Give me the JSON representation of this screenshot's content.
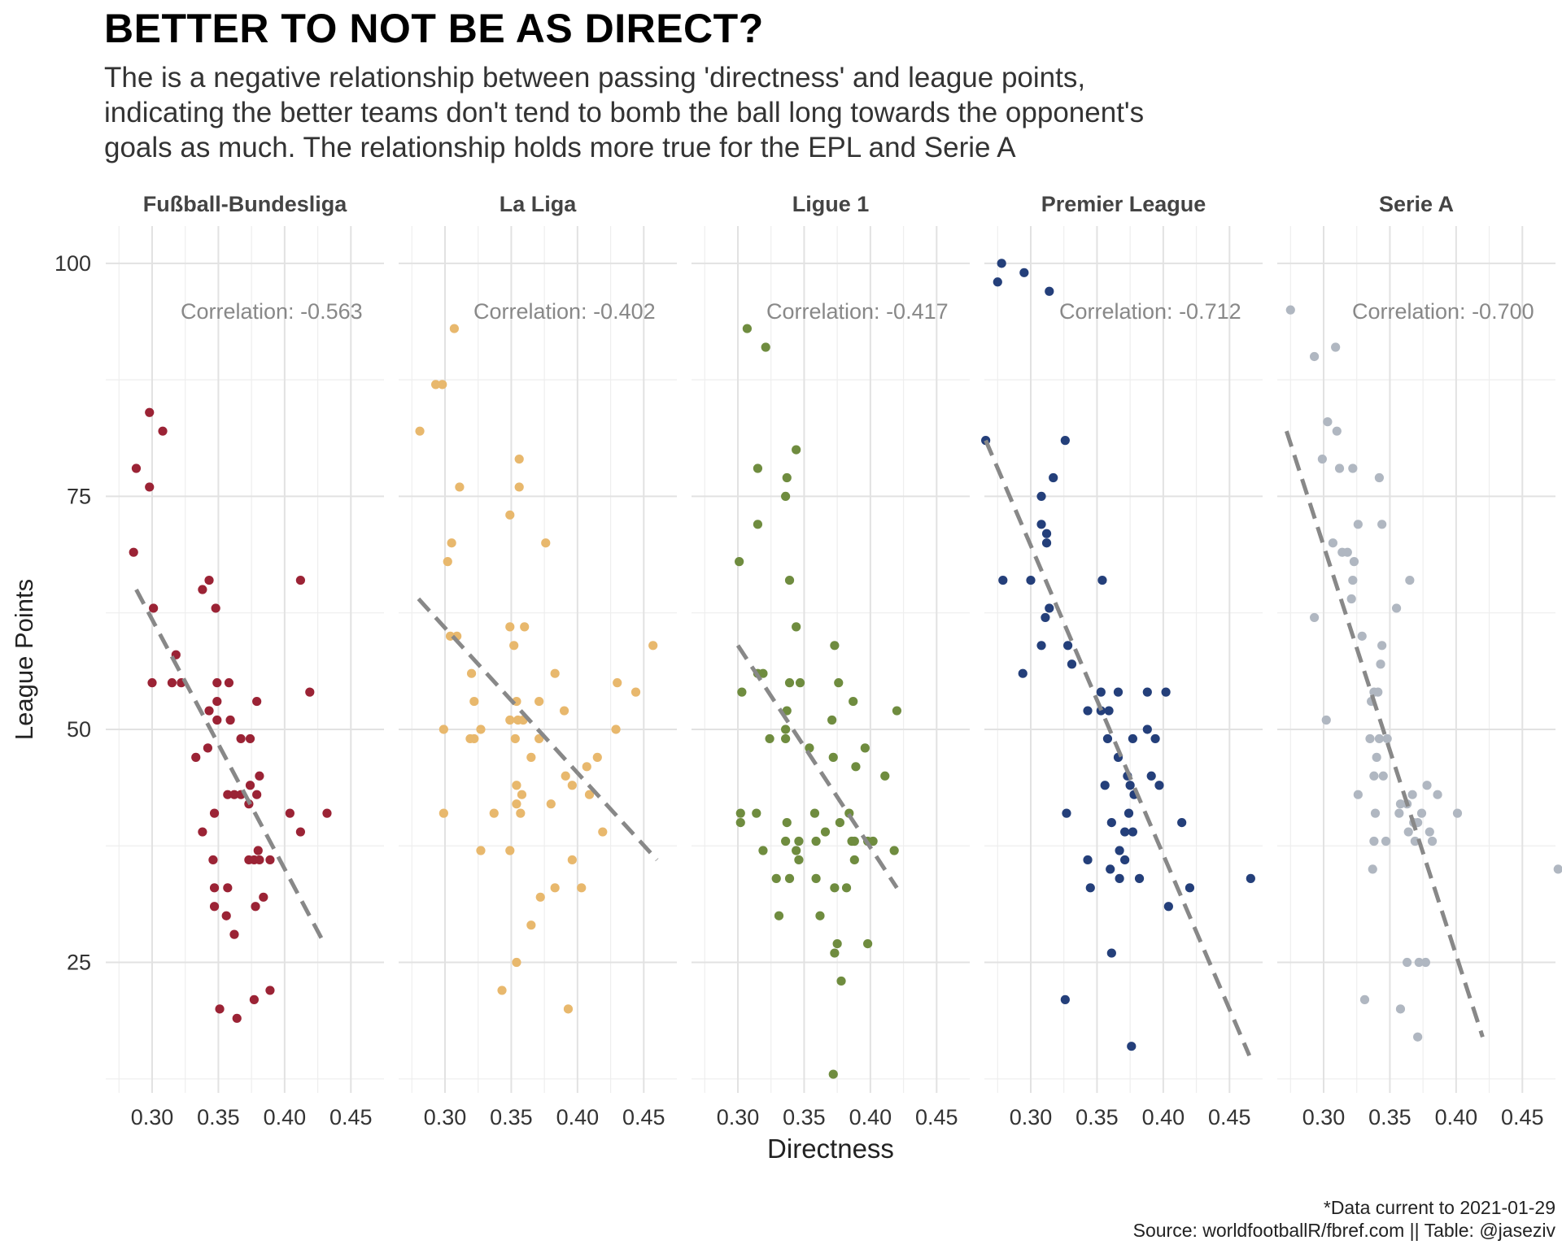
{
  "title": "BETTER TO NOT BE AS DIRECT?",
  "subtitle_lines": [
    "The is a negative relationship between passing 'directness' and league points,",
    "indicating the better teams don't tend to bomb the ball long towards the opponent's",
    "goals as much. The relationship holds more true for the EPL and Serie A"
  ],
  "caption_lines": [
    "*Data current to 2021-01-29",
    "Source: worldfootballR/fbref.com  ||  Table: @jaseziv"
  ],
  "chart_data": {
    "type": "scatter",
    "xlabel": "Directness",
    "ylabel": "League Points",
    "xlim": [
      0.265,
      0.475
    ],
    "ylim": [
      11,
      104
    ],
    "x_ticks": [
      0.3,
      0.35,
      0.4,
      0.45
    ],
    "x_tick_labels": [
      "0.30",
      "0.35",
      "0.40",
      "0.45"
    ],
    "y_ticks": [
      25,
      50,
      75,
      100
    ],
    "y_tick_labels": [
      "25",
      "50",
      "75",
      "100"
    ],
    "grid": true,
    "legend": "none",
    "trend_line_color": "#888888",
    "annotation_color": "#888888",
    "facets": [
      {
        "name": "Fußball-Bundesliga",
        "color": "#9B2335",
        "correlation_label": "Correlation: -0.563",
        "trend": {
          "x": [
            0.288,
            0.43
          ],
          "y": [
            65,
            27
          ]
        },
        "points": [
          [
            0.298,
            84
          ],
          [
            0.308,
            82
          ],
          [
            0.288,
            78
          ],
          [
            0.298,
            76
          ],
          [
            0.286,
            69
          ],
          [
            0.301,
            63
          ],
          [
            0.3,
            55
          ],
          [
            0.315,
            55
          ],
          [
            0.322,
            55
          ],
          [
            0.318,
            58
          ],
          [
            0.338,
            65
          ],
          [
            0.343,
            66
          ],
          [
            0.348,
            63
          ],
          [
            0.349,
            55
          ],
          [
            0.358,
            55
          ],
          [
            0.349,
            53
          ],
          [
            0.343,
            52
          ],
          [
            0.349,
            51
          ],
          [
            0.359,
            51
          ],
          [
            0.333,
            47
          ],
          [
            0.342,
            48
          ],
          [
            0.379,
            53
          ],
          [
            0.367,
            49
          ],
          [
            0.374,
            49
          ],
          [
            0.338,
            39
          ],
          [
            0.357,
            43
          ],
          [
            0.362,
            43
          ],
          [
            0.367,
            43
          ],
          [
            0.373,
            42
          ],
          [
            0.374,
            44
          ],
          [
            0.381,
            45
          ],
          [
            0.379,
            43
          ],
          [
            0.347,
            41
          ],
          [
            0.346,
            36
          ],
          [
            0.377,
            36
          ],
          [
            0.38,
            37
          ],
          [
            0.381,
            36
          ],
          [
            0.389,
            36
          ],
          [
            0.404,
            41
          ],
          [
            0.412,
            39
          ],
          [
            0.412,
            66
          ],
          [
            0.419,
            54
          ],
          [
            0.432,
            41
          ],
          [
            0.347,
            33
          ],
          [
            0.357,
            33
          ],
          [
            0.347,
            31
          ],
          [
            0.356,
            30
          ],
          [
            0.384,
            32
          ],
          [
            0.378,
            31
          ],
          [
            0.362,
            28
          ],
          [
            0.351,
            20
          ],
          [
            0.364,
            19
          ],
          [
            0.377,
            21
          ],
          [
            0.389,
            22
          ],
          [
            0.373,
            36
          ]
        ]
      },
      {
        "name": "La Liga",
        "color": "#E8B86D",
        "correlation_label": "Correlation: -0.402",
        "trend": {
          "x": [
            0.28,
            0.46
          ],
          "y": [
            64,
            36
          ]
        },
        "points": [
          [
            0.307,
            93
          ],
          [
            0.293,
            87
          ],
          [
            0.298,
            87
          ],
          [
            0.281,
            82
          ],
          [
            0.356,
            79
          ],
          [
            0.311,
            76
          ],
          [
            0.356,
            76
          ],
          [
            0.349,
            73
          ],
          [
            0.305,
            70
          ],
          [
            0.376,
            70
          ],
          [
            0.302,
            68
          ],
          [
            0.304,
            60
          ],
          [
            0.309,
            60
          ],
          [
            0.349,
            61
          ],
          [
            0.36,
            61
          ],
          [
            0.457,
            59
          ],
          [
            0.352,
            59
          ],
          [
            0.32,
            56
          ],
          [
            0.383,
            56
          ],
          [
            0.322,
            53
          ],
          [
            0.354,
            53
          ],
          [
            0.371,
            53
          ],
          [
            0.355,
            51
          ],
          [
            0.349,
            51
          ],
          [
            0.359,
            51
          ],
          [
            0.39,
            52
          ],
          [
            0.43,
            55
          ],
          [
            0.444,
            54
          ],
          [
            0.299,
            50
          ],
          [
            0.327,
            50
          ],
          [
            0.319,
            49
          ],
          [
            0.322,
            49
          ],
          [
            0.353,
            49
          ],
          [
            0.371,
            49
          ],
          [
            0.429,
            50
          ],
          [
            0.365,
            47
          ],
          [
            0.407,
            46
          ],
          [
            0.415,
            47
          ],
          [
            0.391,
            45
          ],
          [
            0.396,
            44
          ],
          [
            0.354,
            44
          ],
          [
            0.358,
            43
          ],
          [
            0.409,
            43
          ],
          [
            0.354,
            42
          ],
          [
            0.38,
            42
          ],
          [
            0.299,
            41
          ],
          [
            0.337,
            41
          ],
          [
            0.357,
            41
          ],
          [
            0.419,
            39
          ],
          [
            0.327,
            37
          ],
          [
            0.349,
            37
          ],
          [
            0.396,
            36
          ],
          [
            0.372,
            32
          ],
          [
            0.383,
            33
          ],
          [
            0.403,
            33
          ],
          [
            0.365,
            29
          ],
          [
            0.354,
            25
          ],
          [
            0.343,
            22
          ],
          [
            0.393,
            20
          ]
        ]
      },
      {
        "name": "Ligue 1",
        "color": "#6F8C3F",
        "correlation_label": "Correlation: -0.417",
        "trend": {
          "x": [
            0.3,
            0.42
          ],
          "y": [
            59,
            33
          ]
        },
        "points": [
          [
            0.307,
            93
          ],
          [
            0.321,
            91
          ],
          [
            0.344,
            80
          ],
          [
            0.315,
            78
          ],
          [
            0.337,
            77
          ],
          [
            0.336,
            75
          ],
          [
            0.315,
            72
          ],
          [
            0.301,
            68
          ],
          [
            0.339,
            66
          ],
          [
            0.344,
            61
          ],
          [
            0.315,
            56
          ],
          [
            0.319,
            56
          ],
          [
            0.303,
            54
          ],
          [
            0.339,
            55
          ],
          [
            0.347,
            55
          ],
          [
            0.373,
            59
          ],
          [
            0.337,
            52
          ],
          [
            0.376,
            55
          ],
          [
            0.387,
            53
          ],
          [
            0.42,
            52
          ],
          [
            0.336,
            50
          ],
          [
            0.336,
            49
          ],
          [
            0.324,
            49
          ],
          [
            0.354,
            48
          ],
          [
            0.371,
            51
          ],
          [
            0.396,
            48
          ],
          [
            0.372,
            47
          ],
          [
            0.389,
            46
          ],
          [
            0.411,
            45
          ],
          [
            0.302,
            41
          ],
          [
            0.314,
            41
          ],
          [
            0.302,
            40
          ],
          [
            0.337,
            40
          ],
          [
            0.358,
            41
          ],
          [
            0.384,
            41
          ],
          [
            0.377,
            40
          ],
          [
            0.366,
            39
          ],
          [
            0.336,
            38
          ],
          [
            0.346,
            38
          ],
          [
            0.359,
            38
          ],
          [
            0.386,
            38
          ],
          [
            0.388,
            38
          ],
          [
            0.398,
            38
          ],
          [
            0.402,
            38
          ],
          [
            0.418,
            37
          ],
          [
            0.319,
            37
          ],
          [
            0.346,
            36
          ],
          [
            0.344,
            37
          ],
          [
            0.388,
            36
          ],
          [
            0.329,
            34
          ],
          [
            0.339,
            34
          ],
          [
            0.359,
            34
          ],
          [
            0.373,
            33
          ],
          [
            0.382,
            33
          ],
          [
            0.331,
            30
          ],
          [
            0.362,
            30
          ],
          [
            0.375,
            27
          ],
          [
            0.398,
            27
          ],
          [
            0.373,
            26
          ],
          [
            0.378,
            23
          ],
          [
            0.372,
            13
          ]
        ]
      },
      {
        "name": "Premier League",
        "color": "#243F7A",
        "correlation_label": "Correlation: -0.712",
        "trend": {
          "x": [
            0.266,
            0.465
          ],
          "y": [
            81,
            15
          ]
        },
        "points": [
          [
            0.278,
            100
          ],
          [
            0.295,
            99
          ],
          [
            0.275,
            98
          ],
          [
            0.314,
            97
          ],
          [
            0.266,
            81
          ],
          [
            0.326,
            81
          ],
          [
            0.317,
            77
          ],
          [
            0.308,
            75
          ],
          [
            0.308,
            72
          ],
          [
            0.312,
            71
          ],
          [
            0.312,
            70
          ],
          [
            0.279,
            66
          ],
          [
            0.3,
            66
          ],
          [
            0.354,
            66
          ],
          [
            0.314,
            63
          ],
          [
            0.311,
            62
          ],
          [
            0.308,
            59
          ],
          [
            0.328,
            59
          ],
          [
            0.331,
            57
          ],
          [
            0.294,
            56
          ],
          [
            0.353,
            54
          ],
          [
            0.366,
            54
          ],
          [
            0.388,
            54
          ],
          [
            0.402,
            54
          ],
          [
            0.343,
            52
          ],
          [
            0.353,
            52
          ],
          [
            0.359,
            52
          ],
          [
            0.358,
            49
          ],
          [
            0.377,
            49
          ],
          [
            0.388,
            50
          ],
          [
            0.394,
            49
          ],
          [
            0.366,
            47
          ],
          [
            0.373,
            45
          ],
          [
            0.391,
            45
          ],
          [
            0.356,
            44
          ],
          [
            0.375,
            44
          ],
          [
            0.397,
            44
          ],
          [
            0.378,
            43
          ],
          [
            0.327,
            41
          ],
          [
            0.374,
            41
          ],
          [
            0.361,
            40
          ],
          [
            0.371,
            39
          ],
          [
            0.377,
            39
          ],
          [
            0.414,
            40
          ],
          [
            0.367,
            37
          ],
          [
            0.343,
            36
          ],
          [
            0.371,
            36
          ],
          [
            0.36,
            35
          ],
          [
            0.367,
            34
          ],
          [
            0.382,
            34
          ],
          [
            0.345,
            33
          ],
          [
            0.42,
            33
          ],
          [
            0.466,
            34
          ],
          [
            0.404,
            31
          ],
          [
            0.361,
            26
          ],
          [
            0.326,
            21
          ],
          [
            0.376,
            16
          ]
        ]
      },
      {
        "name": "Serie A",
        "color": "#B0B7C1",
        "correlation_label": "Correlation: -0.700",
        "trend": {
          "x": [
            0.272,
            0.42
          ],
          "y": [
            82,
            17
          ]
        },
        "points": [
          [
            0.275,
            95
          ],
          [
            0.293,
            90
          ],
          [
            0.309,
            91
          ],
          [
            0.303,
            83
          ],
          [
            0.31,
            82
          ],
          [
            0.299,
            79
          ],
          [
            0.312,
            78
          ],
          [
            0.322,
            78
          ],
          [
            0.342,
            77
          ],
          [
            0.326,
            72
          ],
          [
            0.344,
            72
          ],
          [
            0.307,
            70
          ],
          [
            0.314,
            69
          ],
          [
            0.318,
            69
          ],
          [
            0.323,
            68
          ],
          [
            0.322,
            66
          ],
          [
            0.365,
            66
          ],
          [
            0.321,
            64
          ],
          [
            0.355,
            63
          ],
          [
            0.293,
            62
          ],
          [
            0.329,
            60
          ],
          [
            0.344,
            59
          ],
          [
            0.343,
            57
          ],
          [
            0.338,
            54
          ],
          [
            0.341,
            54
          ],
          [
            0.336,
            53
          ],
          [
            0.302,
            51
          ],
          [
            0.335,
            49
          ],
          [
            0.342,
            49
          ],
          [
            0.348,
            49
          ],
          [
            0.34,
            47
          ],
          [
            0.338,
            45
          ],
          [
            0.345,
            45
          ],
          [
            0.367,
            43
          ],
          [
            0.326,
            43
          ],
          [
            0.378,
            44
          ],
          [
            0.386,
            43
          ],
          [
            0.358,
            42
          ],
          [
            0.363,
            42
          ],
          [
            0.339,
            41
          ],
          [
            0.357,
            41
          ],
          [
            0.374,
            41
          ],
          [
            0.401,
            41
          ],
          [
            0.368,
            40
          ],
          [
            0.371,
            40
          ],
          [
            0.364,
            39
          ],
          [
            0.38,
            39
          ],
          [
            0.338,
            38
          ],
          [
            0.347,
            38
          ],
          [
            0.369,
            38
          ],
          [
            0.382,
            38
          ],
          [
            0.337,
            35
          ],
          [
            0.477,
            35
          ],
          [
            0.363,
            25
          ],
          [
            0.372,
            25
          ],
          [
            0.377,
            25
          ],
          [
            0.331,
            21
          ],
          [
            0.358,
            20
          ],
          [
            0.371,
            17
          ]
        ]
      }
    ]
  }
}
